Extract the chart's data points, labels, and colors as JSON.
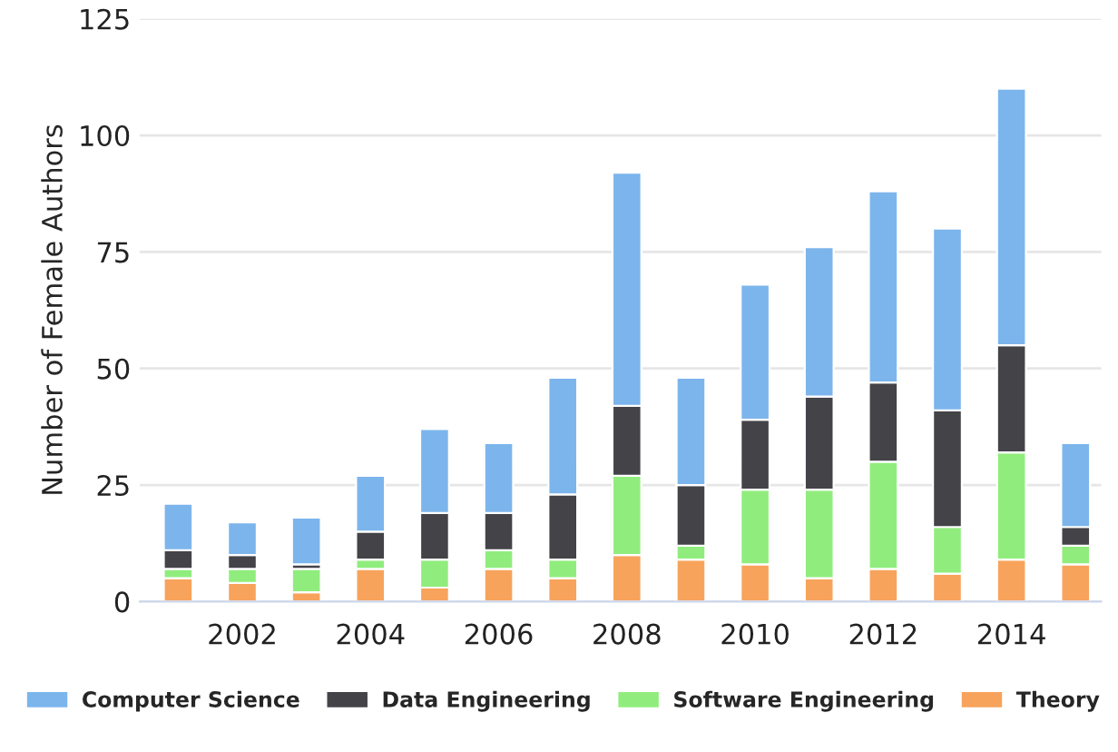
{
  "chart_data": {
    "type": "bar",
    "stacked": true,
    "ylabel": "Number of Female Authors",
    "x": [
      2001,
      2002,
      2003,
      2004,
      2005,
      2006,
      2007,
      2008,
      2009,
      2010,
      2011,
      2012,
      2013,
      2014,
      2015
    ],
    "series": [
      {
        "name": "Theory",
        "color": "#f7a35c",
        "values": [
          5,
          4,
          2,
          7,
          3,
          7,
          5,
          10,
          9,
          8,
          5,
          7,
          6,
          9,
          8
        ]
      },
      {
        "name": "Software Engineering",
        "color": "#90ed7d",
        "values": [
          2,
          3,
          5,
          2,
          6,
          4,
          4,
          17,
          3,
          16,
          19,
          23,
          10,
          23,
          4
        ]
      },
      {
        "name": "Data Engineering",
        "color": "#434348",
        "values": [
          4,
          3,
          1,
          6,
          10,
          8,
          14,
          15,
          13,
          15,
          20,
          17,
          25,
          23,
          4
        ]
      },
      {
        "name": "Computer Science",
        "color": "#7cb5ec",
        "values": [
          10,
          7,
          10,
          12,
          18,
          15,
          25,
          50,
          23,
          29,
          32,
          41,
          39,
          55,
          18
        ]
      }
    ],
    "xlim": [
      2000.4,
      2015.4
    ],
    "xticks": [
      2002,
      2004,
      2006,
      2008,
      2010,
      2012,
      2014
    ],
    "ylim": [
      0,
      125
    ],
    "yticks": [
      0,
      25,
      50,
      75,
      100,
      125
    ],
    "grid": "y",
    "legend": "bottom"
  }
}
